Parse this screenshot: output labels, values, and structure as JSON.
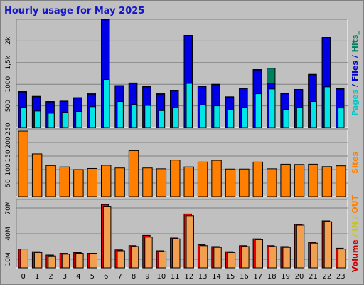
{
  "chart_data": [
    {
      "type": "bar",
      "title": "Hourly usage for May 2025",
      "categories": [
        "0",
        "1",
        "2",
        "3",
        "4",
        "5",
        "6",
        "7",
        "8",
        "9",
        "10",
        "11",
        "12",
        "13",
        "14",
        "15",
        "16",
        "17",
        "18",
        "19",
        "20",
        "21",
        "22",
        "23"
      ],
      "yticks": [
        500,
        1000,
        1500,
        2000
      ],
      "ytick_labels": [
        "500",
        "1000",
        "1,5k",
        "2k"
      ],
      "ylim": [
        0,
        2500
      ],
      "side_label": [
        {
          "text": "Pages",
          "color": "#00c8c8"
        },
        {
          "text": " / ",
          "color": "#0000c8"
        },
        {
          "text": "Files",
          "color": "#0000c8"
        },
        {
          "text": " / ",
          "color": "#0000c8"
        },
        {
          "text": "Hits",
          "color": "#008060"
        },
        {
          "text": "_",
          "color": "#008060"
        }
      ],
      "series": [
        {
          "name": "Hits",
          "color": "#008060",
          "values": [
            830,
            720,
            600,
            610,
            690,
            790,
            2500,
            970,
            1030,
            950,
            780,
            860,
            2130,
            960,
            1000,
            710,
            910,
            1340,
            1370,
            790,
            880,
            1230,
            2080,
            900
          ]
        },
        {
          "name": "Files",
          "color": "#0000e6",
          "values": [
            820,
            710,
            590,
            600,
            680,
            770,
            2490,
            960,
            1020,
            940,
            770,
            850,
            2120,
            950,
            990,
            700,
            900,
            1330,
            1020,
            780,
            870,
            1220,
            2070,
            890
          ]
        },
        {
          "name": "Pages",
          "color": "#00e6e6",
          "values": [
            470,
            380,
            330,
            350,
            370,
            480,
            1110,
            600,
            530,
            510,
            390,
            460,
            1020,
            520,
            500,
            410,
            460,
            780,
            890,
            420,
            460,
            600,
            940,
            450
          ]
        }
      ]
    },
    {
      "type": "bar",
      "categories": [
        "0",
        "1",
        "2",
        "3",
        "4",
        "5",
        "6",
        "7",
        "8",
        "9",
        "10",
        "11",
        "12",
        "13",
        "14",
        "15",
        "16",
        "17",
        "18",
        "19",
        "20",
        "21",
        "22",
        "23"
      ],
      "yticks": [
        50,
        100,
        150,
        200,
        250
      ],
      "ytick_labels": [
        "50",
        "100",
        "150",
        "200",
        "250"
      ],
      "ylim": [
        0,
        250
      ],
      "side_label": [
        {
          "text": "Sites",
          "color": "#ff8000"
        }
      ],
      "series": [
        {
          "name": "Sites",
          "color": "#ff8000",
          "values": [
            242,
            158,
            115,
            110,
            100,
            104,
            116,
            106,
            170,
            106,
            103,
            135,
            110,
            128,
            134,
            102,
            102,
            128,
            103,
            120,
            119,
            120,
            111,
            114
          ]
        }
      ]
    },
    {
      "type": "bar",
      "categories": [
        "0",
        "1",
        "2",
        "3",
        "4",
        "5",
        "6",
        "7",
        "8",
        "9",
        "10",
        "11",
        "12",
        "13",
        "14",
        "15",
        "16",
        "17",
        "18",
        "19",
        "20",
        "21",
        "22",
        "23"
      ],
      "yticks": [
        10,
        40,
        70
      ],
      "ytick_labels": [
        "10M",
        "40M",
        "70M"
      ],
      "ylim": [
        0,
        80
      ],
      "side_label": [
        {
          "text": "Volume",
          "color": "#c80000"
        },
        {
          "text": " / ",
          "color": "#c8c800"
        },
        {
          "text": "IN",
          "color": "#c8c800"
        },
        {
          "text": " / ",
          "color": "#c8c800"
        },
        {
          "text": "OUT",
          "color": "#ff8000"
        },
        {
          "text": " ",
          "color": "#ff8000"
        }
      ],
      "series": [
        {
          "name": "Volume",
          "color": "#e60000",
          "values": [
            22,
            19,
            15,
            17,
            18,
            17,
            74,
            21,
            26,
            38,
            20,
            35,
            63,
            27,
            25,
            19,
            26,
            34,
            26,
            25,
            51,
            30,
            55,
            23
          ]
        },
        {
          "name": "OUT",
          "color": "#f0a050",
          "values": [
            22,
            18,
            14,
            16,
            17,
            17,
            72,
            20,
            25,
            36,
            19,
            34,
            61,
            26,
            24,
            18,
            25,
            33,
            25,
            24,
            50,
            29,
            54,
            22
          ]
        }
      ]
    }
  ]
}
